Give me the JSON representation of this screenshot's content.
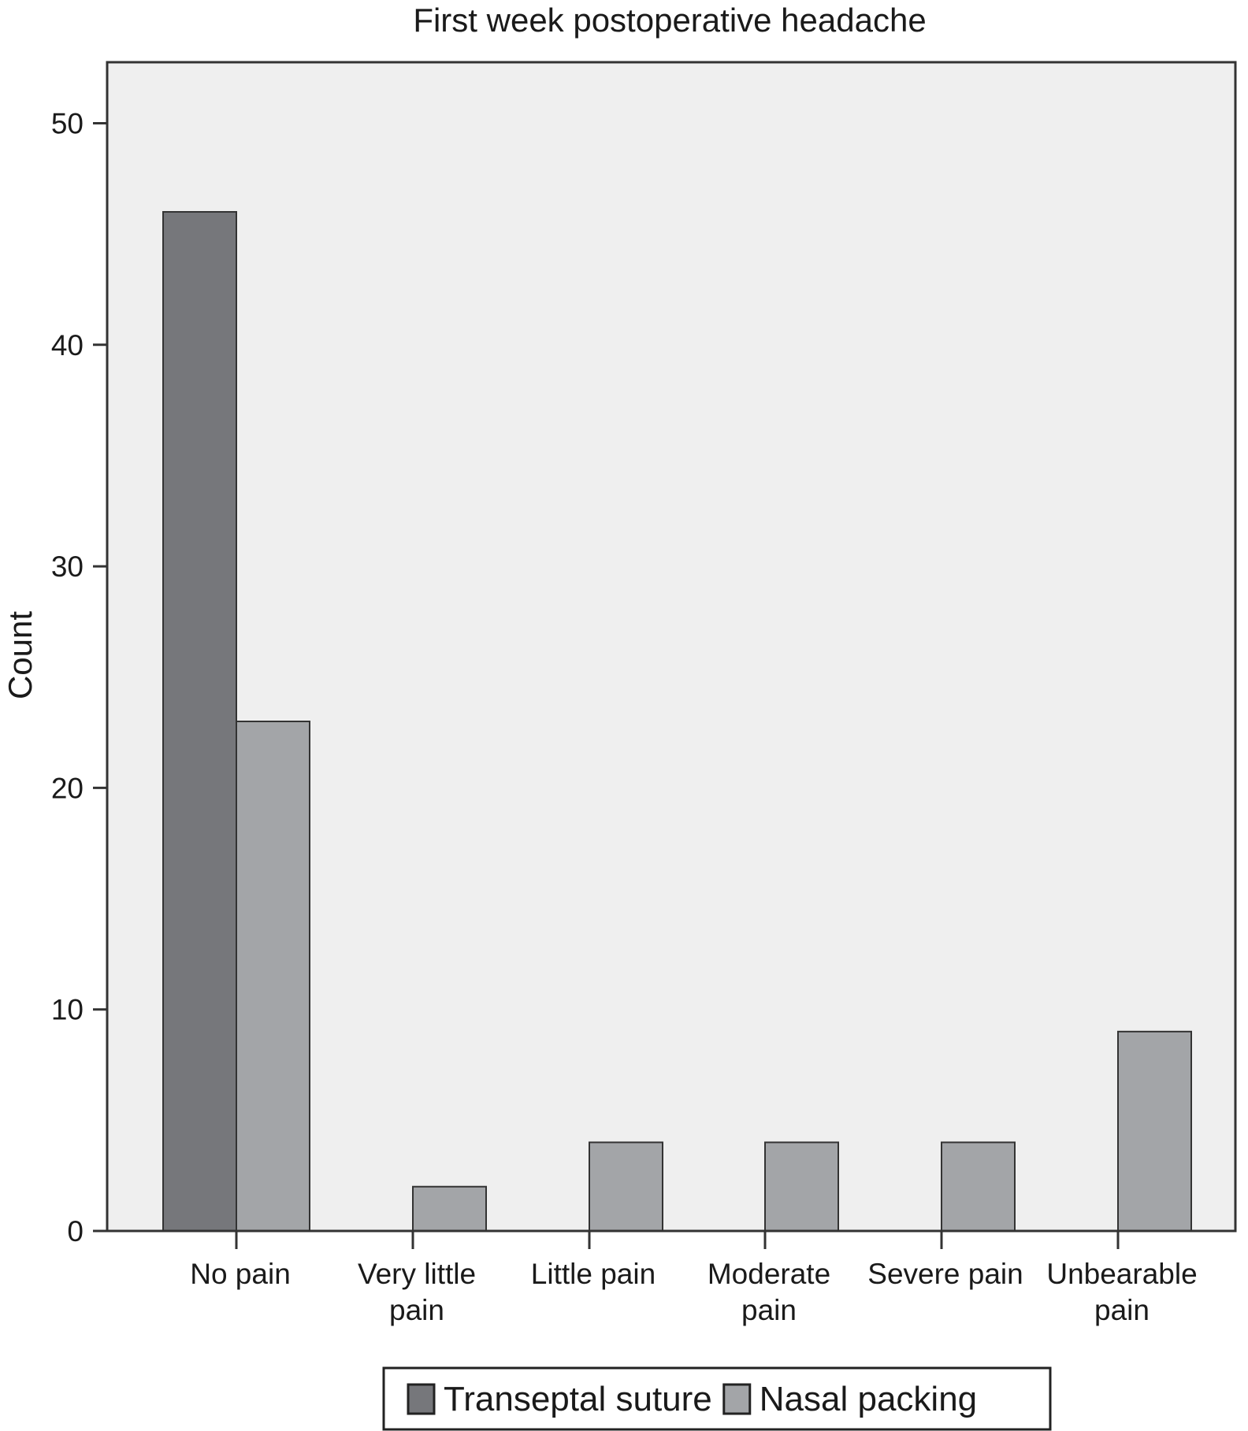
{
  "chart_data": {
    "type": "bar",
    "title": "First week postoperative headache",
    "xlabel": "",
    "ylabel": "Count",
    "ylim": [
      0,
      52.7
    ],
    "yticks": [
      0,
      10,
      20,
      30,
      40,
      50
    ],
    "categories": [
      [
        "No pain"
      ],
      [
        "Very little",
        "pain"
      ],
      [
        "Little pain"
      ],
      [
        "Moderate",
        "pain"
      ],
      [
        "Severe pain"
      ],
      [
        "Unbearable",
        "pain"
      ]
    ],
    "series": [
      {
        "name": "Transeptal suture",
        "color": "#76777b",
        "values": [
          46,
          0,
          0,
          0,
          0,
          0
        ]
      },
      {
        "name": "Nasal packing",
        "color": "#a3a5a8",
        "values": [
          23,
          2,
          4,
          4,
          4,
          9
        ]
      }
    ],
    "grid": false,
    "legend": "bottom",
    "plot_background": "#efefef"
  }
}
